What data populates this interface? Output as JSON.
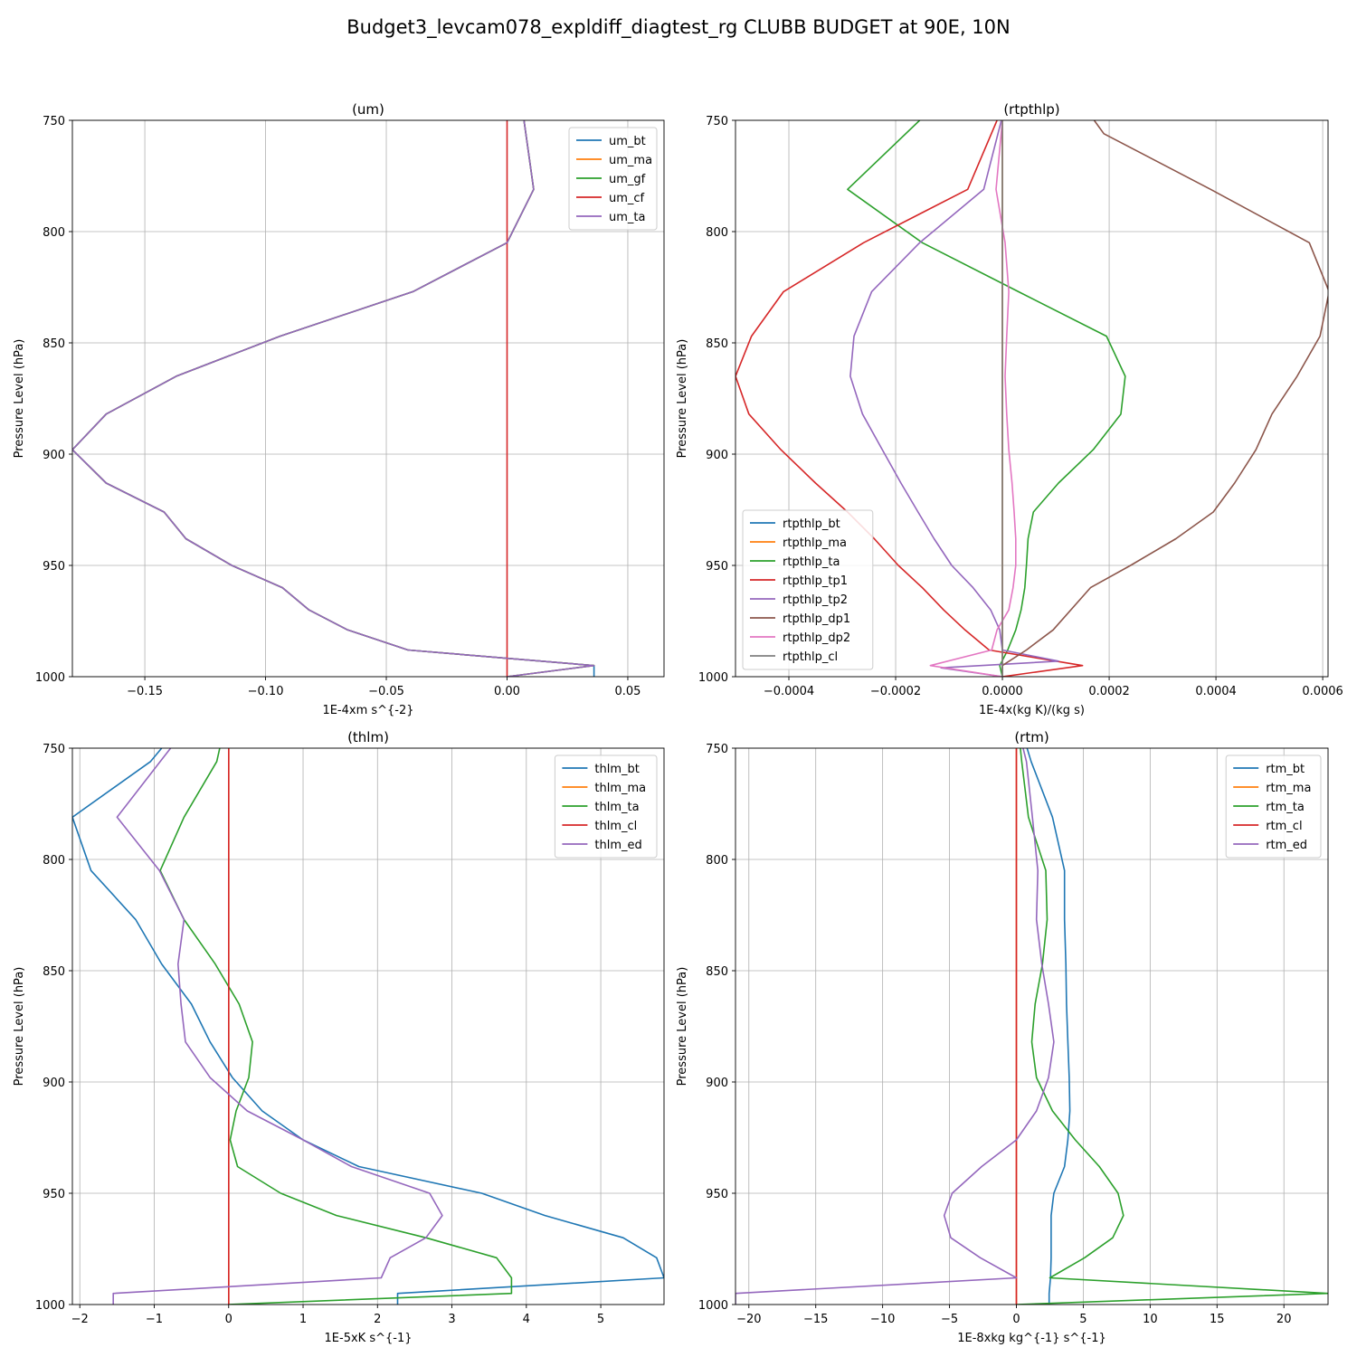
{
  "figure_title": "Budget3_levcam078_expldiff_diagtest_rg CLUBB BUDGET at 90E, 10N",
  "chart_data": [
    {
      "type": "line",
      "title": "(um)",
      "xlabel": "1E-4xm s^{-2}",
      "ylabel": "Pressure Level (hPa)",
      "xlim": [
        -0.18,
        0.065
      ],
      "ylim": [
        1000,
        750
      ],
      "xticks": [
        -0.15,
        -0.1,
        -0.05,
        0.0,
        0.05
      ],
      "xtick_labels": [
        "−0.15",
        "−0.10",
        "−0.05",
        "0.00",
        "0.05"
      ],
      "yticks": [
        750,
        800,
        850,
        900,
        950,
        1000
      ],
      "ytick_labels": [
        "750",
        "800",
        "850",
        "900",
        "950",
        "1000"
      ],
      "legend_loc": "upper-right",
      "series": [
        {
          "name": "um_bt",
          "color": "#1f77b4",
          "x": [
            0.007,
            0.011,
            0.0,
            -0.039,
            -0.094,
            -0.137,
            -0.166,
            -0.18,
            -0.166,
            -0.142,
            -0.133,
            -0.114,
            -0.093,
            -0.082,
            -0.066,
            -0.041,
            0.036,
            0.036
          ],
          "y": [
            750,
            781,
            805,
            827,
            847,
            865,
            882,
            898,
            913,
            926,
            938,
            950,
            960,
            970,
            979,
            988,
            995,
            1000
          ]
        },
        {
          "name": "um_ma",
          "color": "#ff7f0e",
          "x": [
            0.007,
            0.011,
            0.0,
            -0.039,
            -0.094,
            -0.137,
            -0.166,
            -0.18,
            -0.166,
            -0.142,
            -0.133,
            -0.114,
            -0.093,
            -0.082,
            -0.066,
            -0.041,
            0.036,
            0.0
          ],
          "y": [
            750,
            781,
            805,
            827,
            847,
            865,
            882,
            898,
            913,
            926,
            938,
            950,
            960,
            970,
            979,
            988,
            995,
            1000
          ]
        },
        {
          "name": "um_gf",
          "color": "#2ca02c",
          "x": [
            0.007,
            0.011,
            0.0,
            -0.039,
            -0.094,
            -0.137,
            -0.166,
            -0.18,
            -0.166,
            -0.142,
            -0.133,
            -0.114,
            -0.093,
            -0.082,
            -0.066,
            -0.041,
            0.036,
            0.0
          ],
          "y": [
            750,
            781,
            805,
            827,
            847,
            865,
            882,
            898,
            913,
            926,
            938,
            950,
            960,
            970,
            979,
            988,
            995,
            1000
          ]
        },
        {
          "name": "um_cf",
          "color": "#d62728",
          "x": [
            0.0,
            0.0
          ],
          "y": [
            750,
            1000
          ]
        },
        {
          "name": "um_ta",
          "color": "#9467bd",
          "x": [
            0.007,
            0.011,
            0.0,
            -0.039,
            -0.094,
            -0.137,
            -0.166,
            -0.18,
            -0.166,
            -0.142,
            -0.133,
            -0.114,
            -0.093,
            -0.082,
            -0.066,
            -0.041,
            0.036,
            0.0
          ],
          "y": [
            750,
            781,
            805,
            827,
            847,
            865,
            882,
            898,
            913,
            926,
            938,
            950,
            960,
            970,
            979,
            988,
            995,
            1000
          ]
        }
      ]
    },
    {
      "type": "line",
      "title": "(rtpthlp)",
      "xlabel": "1E-4x(kg K)/(kg s)",
      "ylabel": "Pressure Level (hPa)",
      "xlim": [
        -0.0005,
        0.00061
      ],
      "ylim": [
        1000,
        750
      ],
      "xticks": [
        -0.0004,
        -0.0002,
        0.0,
        0.0002,
        0.0004,
        0.0006
      ],
      "xtick_labels": [
        "−0.0004",
        "−0.0002",
        "0.0000",
        "0.0002",
        "0.0004",
        "0.0006"
      ],
      "yticks": [
        750,
        800,
        850,
        900,
        950,
        1000
      ],
      "ytick_labels": [
        "750",
        "800",
        "850",
        "900",
        "950",
        "1000"
      ],
      "legend_loc": "lower-left",
      "series": [
        {
          "name": "rtpthlp_bt",
          "color": "#1f77b4",
          "x": [
            0.0,
            0.0,
            0.0,
            0.0,
            0.0,
            0.0,
            0.0,
            0.0,
            0.0,
            0.0,
            0.0,
            0.0,
            0.0,
            0.0,
            0.0,
            0.0,
            0.0,
            0.0
          ],
          "y": [
            750,
            781,
            805,
            827,
            847,
            865,
            882,
            898,
            913,
            926,
            938,
            950,
            960,
            970,
            979,
            988,
            995,
            1000
          ]
        },
        {
          "name": "rtpthlp_ma",
          "color": "#ff7f0e",
          "x": [
            0.0,
            0.0,
            0.0,
            0.0,
            0.0,
            0.0,
            0.0,
            0.0,
            0.0,
            0.0,
            0.0,
            0.0,
            0.0,
            0.0,
            0.0,
            0.0,
            0.0,
            0.0
          ],
          "y": [
            750,
            781,
            805,
            827,
            847,
            865,
            882,
            898,
            913,
            926,
            938,
            950,
            960,
            970,
            979,
            988,
            995,
            1000
          ]
        },
        {
          "name": "rtpthlp_ta",
          "color": "#2ca02c",
          "x": [
            -0.000155,
            -0.00029,
            -0.00015,
            3e-05,
            0.000195,
            0.00023,
            0.000222,
            0.00017,
            0.000105,
            5.8e-05,
            4.8e-05,
            4.5e-05,
            4.2e-05,
            3.5e-05,
            2.5e-05,
            1e-05,
            -5e-06,
            0.0
          ],
          "y": [
            750,
            781,
            805,
            827,
            847,
            865,
            882,
            898,
            913,
            926,
            938,
            950,
            960,
            970,
            979,
            988,
            995,
            1000
          ]
        },
        {
          "name": "rtpthlp_tp1",
          "color": "#d62728",
          "x": [
            -1e-05,
            -6.5e-05,
            -0.00026,
            -0.00041,
            -0.00047,
            -0.0005,
            -0.000475,
            -0.000415,
            -0.00035,
            -0.00029,
            -0.00024,
            -0.000195,
            -0.00015,
            -0.00011,
            -7e-05,
            -2.5e-05,
            0.00015,
            0.0
          ],
          "y": [
            750,
            781,
            805,
            827,
            847,
            865,
            882,
            898,
            913,
            926,
            938,
            950,
            960,
            970,
            979,
            988,
            995,
            1000
          ]
        },
        {
          "name": "rtpthlp_tp2",
          "color": "#9467bd",
          "x": [
            -2e-06,
            -3.5e-05,
            -0.000155,
            -0.000245,
            -0.000278,
            -0.000285,
            -0.000262,
            -0.000225,
            -0.00019,
            -0.000158,
            -0.000128,
            -9.5e-05,
            -5.5e-05,
            -2.2e-05,
            -5e-06,
            0.0,
            0.000105,
            -0.000115,
            0.0
          ],
          "y": [
            750,
            781,
            805,
            827,
            847,
            865,
            882,
            898,
            913,
            926,
            938,
            950,
            960,
            970,
            979,
            988,
            993,
            996,
            1000
          ]
        },
        {
          "name": "rtpthlp_dp1",
          "color": "#8c564b",
          "x": [
            0.000172,
            0.00019,
            0.00039,
            0.000575,
            0.000612,
            0.000595,
            0.000552,
            0.000505,
            0.000475,
            0.000435,
            0.000395,
            0.000325,
            0.00024,
            0.000165,
            9.5e-05,
            4.5e-05,
            0.0,
            0.0
          ],
          "y": [
            750,
            756,
            781,
            805,
            827,
            847,
            865,
            882,
            898,
            913,
            926,
            938,
            950,
            960,
            979,
            988,
            995,
            1000
          ]
        },
        {
          "name": "rtpthlp_dp2",
          "color": "#e377c2",
          "x": [
            0.0,
            -1.2e-05,
            5e-06,
            1.2e-05,
            8e-06,
            5e-06,
            8e-06,
            1.2e-05,
            1.8e-05,
            2.2e-05,
            2.5e-05,
            2.5e-05,
            2e-05,
            1.2e-05,
            -1e-05,
            -2e-05,
            -0.000135,
            0.0
          ],
          "y": [
            750,
            781,
            805,
            827,
            847,
            865,
            882,
            898,
            913,
            926,
            938,
            950,
            960,
            970,
            979,
            988,
            995,
            1000
          ]
        },
        {
          "name": "rtpthlp_cl",
          "color": "#7f7f7f",
          "x": [
            0.0,
            0.0,
            0.0,
            0.0,
            0.0,
            0.0,
            0.0,
            0.0,
            0.0,
            0.0,
            0.0,
            0.0,
            0.0,
            0.0,
            0.0,
            0.0,
            0.0,
            0.0
          ],
          "y": [
            750,
            781,
            805,
            827,
            847,
            865,
            882,
            898,
            913,
            926,
            938,
            950,
            960,
            970,
            979,
            988,
            995,
            1000
          ]
        }
      ]
    },
    {
      "type": "line",
      "title": "(thlm)",
      "xlabel": "1E-5xK s^{-1}",
      "ylabel": "Pressure Level (hPa)",
      "xlim": [
        -2.1,
        5.85
      ],
      "ylim": [
        1000,
        750
      ],
      "xticks": [
        -2,
        -1,
        0,
        1,
        2,
        3,
        4,
        5
      ],
      "xtick_labels": [
        "−2",
        "−1",
        "0",
        "1",
        "2",
        "3",
        "4",
        "5"
      ],
      "yticks": [
        750,
        800,
        850,
        900,
        950,
        1000
      ],
      "ytick_labels": [
        "750",
        "800",
        "850",
        "900",
        "950",
        "1000"
      ],
      "legend_loc": "upper-right",
      "series": [
        {
          "name": "thlm_bt",
          "color": "#1f77b4",
          "x": [
            -0.9,
            -1.05,
            -2.1,
            -1.85,
            -1.25,
            -0.9,
            -0.5,
            -0.25,
            0.05,
            0.45,
            1.0,
            1.75,
            3.4,
            4.25,
            5.3,
            5.75,
            5.85,
            2.27,
            2.27
          ],
          "y": [
            750,
            756,
            781,
            805,
            827,
            847,
            865,
            882,
            898,
            913,
            926,
            938,
            950,
            960,
            970,
            979,
            988,
            995,
            1000
          ]
        },
        {
          "name": "thlm_ma",
          "color": "#ff7f0e",
          "x": [
            0.0,
            0.0
          ],
          "y": [
            750,
            1000
          ]
        },
        {
          "name": "thlm_ta",
          "color": "#2ca02c",
          "x": [
            -0.12,
            -0.16,
            -0.6,
            -0.92,
            -0.6,
            -0.18,
            0.14,
            0.32,
            0.27,
            0.1,
            0.02,
            0.12,
            0.7,
            1.45,
            2.65,
            3.6,
            3.8,
            3.8,
            0.0
          ],
          "y": [
            750,
            756,
            781,
            805,
            827,
            847,
            865,
            882,
            898,
            913,
            926,
            938,
            950,
            960,
            970,
            979,
            988,
            995,
            1000
          ]
        },
        {
          "name": "thlm_cl",
          "color": "#d62728",
          "x": [
            0.0,
            0.0
          ],
          "y": [
            750,
            1000
          ]
        },
        {
          "name": "thlm_ed",
          "color": "#9467bd",
          "x": [
            -0.78,
            -0.92,
            -1.5,
            -0.93,
            -0.6,
            -0.68,
            -0.64,
            -0.58,
            -0.25,
            0.25,
            1.0,
            1.65,
            2.7,
            2.87,
            2.65,
            2.17,
            2.05,
            -1.55,
            -1.55
          ],
          "y": [
            750,
            756,
            781,
            805,
            827,
            847,
            865,
            882,
            898,
            913,
            926,
            938,
            950,
            960,
            970,
            979,
            988,
            995,
            1000
          ]
        }
      ]
    },
    {
      "type": "line",
      "title": "(rtm)",
      "xlabel": "1E-8xkg kg^{-1} s^{-1}",
      "ylabel": "Pressure Level (hPa)",
      "xlim": [
        -21,
        23.3
      ],
      "ylim": [
        1000,
        750
      ],
      "xticks": [
        -20,
        -15,
        -10,
        -5,
        0,
        5,
        10,
        15,
        20
      ],
      "xtick_labels": [
        "−20",
        "−15",
        "−10",
        "−5",
        "0",
        "5",
        "10",
        "15",
        "20"
      ],
      "yticks": [
        750,
        800,
        850,
        900,
        950,
        1000
      ],
      "ytick_labels": [
        "750",
        "800",
        "850",
        "900",
        "950",
        "1000"
      ],
      "legend_loc": "upper-right",
      "series": [
        {
          "name": "rtm_bt",
          "color": "#1f77b4",
          "x": [
            0.8,
            1.1,
            2.7,
            3.6,
            3.6,
            3.7,
            3.75,
            3.85,
            3.95,
            4.0,
            3.85,
            3.6,
            2.8,
            2.6,
            2.6,
            2.6,
            2.55,
            2.45,
            2.45
          ],
          "y": [
            750,
            756,
            781,
            805,
            827,
            847,
            865,
            882,
            898,
            913,
            926,
            938,
            950,
            960,
            970,
            979,
            988,
            995,
            1000
          ]
        },
        {
          "name": "rtm_ma",
          "color": "#ff7f0e",
          "x": [
            0.0,
            0.0
          ],
          "y": [
            750,
            1000
          ]
        },
        {
          "name": "rtm_ta",
          "color": "#2ca02c",
          "x": [
            0.3,
            0.4,
            0.9,
            2.2,
            2.3,
            1.95,
            1.4,
            1.15,
            1.5,
            2.7,
            4.4,
            6.2,
            7.6,
            8.0,
            7.2,
            5.1,
            2.5,
            23.3,
            0.0
          ],
          "y": [
            750,
            756,
            781,
            805,
            827,
            847,
            865,
            882,
            898,
            913,
            926,
            938,
            950,
            960,
            970,
            979,
            988,
            995,
            1000
          ]
        },
        {
          "name": "rtm_cl",
          "color": "#d62728",
          "x": [
            0.0,
            0.0
          ],
          "y": [
            750,
            1000
          ]
        },
        {
          "name": "rtm_ed",
          "color": "#9467bd",
          "x": [
            0.5,
            0.75,
            1.2,
            1.6,
            1.5,
            1.9,
            2.4,
            2.8,
            2.4,
            1.5,
            0.0,
            -2.6,
            -4.8,
            -5.4,
            -4.9,
            -2.7,
            0.0,
            -21.0,
            -21.0
          ],
          "y": [
            750,
            756,
            781,
            805,
            827,
            847,
            865,
            882,
            898,
            913,
            926,
            938,
            950,
            960,
            970,
            979,
            988,
            995,
            1000
          ]
        }
      ]
    }
  ]
}
